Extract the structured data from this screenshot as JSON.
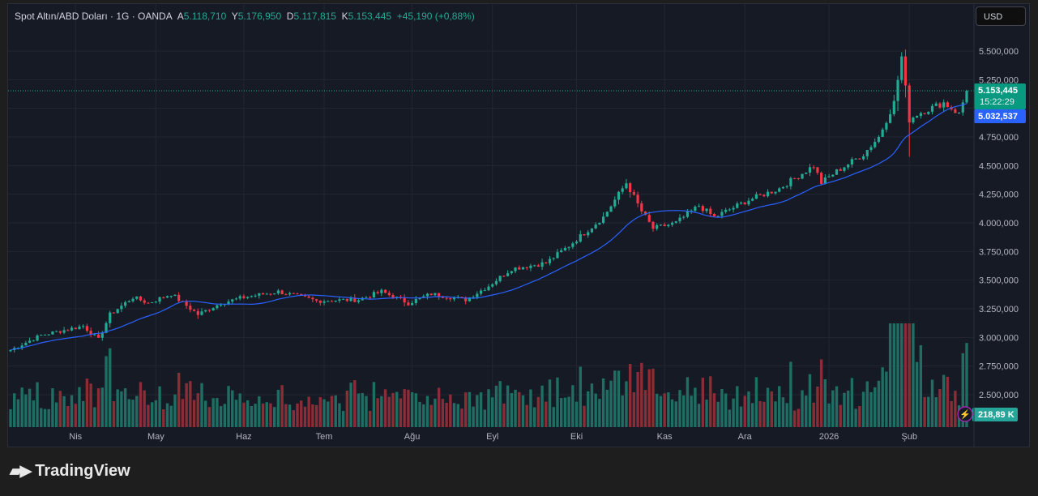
{
  "legend": {
    "symbol": "Spot Altın/ABD Doları · 1G · OANDA",
    "open_label": "A",
    "open": "5.118,710",
    "high_label": "Y",
    "high": "5.176,950",
    "low_label": "D",
    "low": "5.117,815",
    "close_label": "K",
    "close": "5.153,445",
    "change": "+45,190 (+0,88%)"
  },
  "currency_button": "USD",
  "price_badge": {
    "price": "5.153,445",
    "countdown": "15:22:29"
  },
  "ma_badge": "5.032,537",
  "volume_badge": "218,89 K",
  "footer": {
    "brand": "TradingView"
  },
  "colors": {
    "up": "#22ab94",
    "down": "#f23645",
    "ma": "#2962ff",
    "bg": "#161a25"
  },
  "chart_data": {
    "type": "candlestick",
    "y_ticks": [
      "5.500,000",
      "5.250,000",
      "5.000,000",
      "4.750,000",
      "4.500,000",
      "4.250,000",
      "4.000,000",
      "3.750,000",
      "3.500,000",
      "3.250,000",
      "3.000,000",
      "2.750,000",
      "2.500,000"
    ],
    "y_tick_values": [
      5500000,
      5250000,
      5000000,
      4750000,
      4500000,
      4250000,
      4000000,
      3750000,
      3500000,
      3250000,
      3000000,
      2750000,
      2500000
    ],
    "x_ticks": [
      {
        "label": "Nis",
        "day": 17
      },
      {
        "label": "May",
        "day": 38
      },
      {
        "label": "Haz",
        "day": 61
      },
      {
        "label": "Tem",
        "day": 82
      },
      {
        "label": "Ağu",
        "day": 105
      },
      {
        "label": "Eyl",
        "day": 126
      },
      {
        "label": "Eki",
        "day": 148
      },
      {
        "label": "Kas",
        "day": 171
      },
      {
        "label": "Ara",
        "day": 192
      },
      {
        "label": "2026",
        "day": 214
      },
      {
        "label": "Şub",
        "day": 235
      }
    ],
    "approx_closes": [
      [
        0,
        2890000
      ],
      [
        8,
        3020000
      ],
      [
        19,
        3100000
      ],
      [
        23,
        2980000
      ],
      [
        26,
        3200000
      ],
      [
        32,
        3350000
      ],
      [
        36,
        3300000
      ],
      [
        42,
        3380000
      ],
      [
        49,
        3200000
      ],
      [
        55,
        3300000
      ],
      [
        61,
        3350000
      ],
      [
        70,
        3400000
      ],
      [
        80,
        3320000
      ],
      [
        91,
        3330000
      ],
      [
        97,
        3400000
      ],
      [
        104,
        3300000
      ],
      [
        110,
        3380000
      ],
      [
        119,
        3330000
      ],
      [
        125,
        3450000
      ],
      [
        131,
        3600000
      ],
      [
        140,
        3650000
      ],
      [
        146,
        3800000
      ],
      [
        155,
        4050000
      ],
      [
        161,
        4350000
      ],
      [
        165,
        4100000
      ],
      [
        168,
        3950000
      ],
      [
        174,
        4000000
      ],
      [
        180,
        4150000
      ],
      [
        184,
        4050000
      ],
      [
        193,
        4200000
      ],
      [
        201,
        4300000
      ],
      [
        210,
        4500000
      ],
      [
        212,
        4350000
      ],
      [
        216,
        4450000
      ],
      [
        223,
        4600000
      ],
      [
        227,
        4750000
      ],
      [
        231,
        5050000
      ],
      [
        233,
        5450000
      ],
      [
        235,
        4900000
      ],
      [
        237,
        4950000
      ],
      [
        244,
        5050000
      ],
      [
        248,
        4950000
      ],
      [
        250,
        5153445
      ]
    ],
    "ma_period": 20,
    "volume_axis_note": "volume bars overlay bottom pane"
  }
}
